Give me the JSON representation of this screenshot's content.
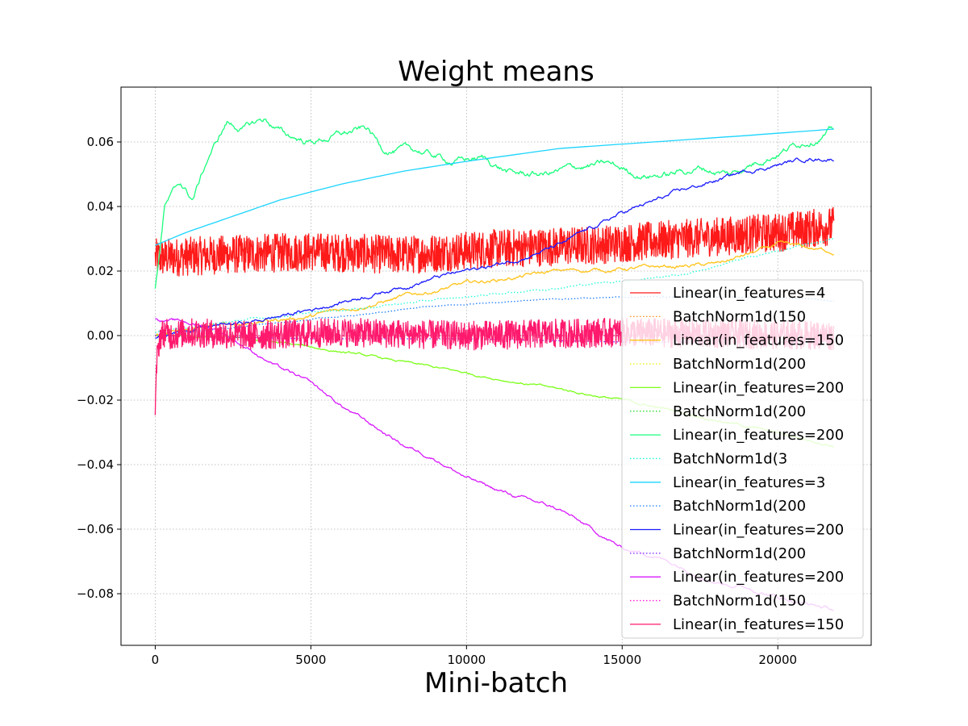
{
  "chart_data": {
    "type": "line",
    "title": "Weight means",
    "xlabel": "Mini-batch",
    "ylabel": "",
    "xlim": [
      -1100,
      23000
    ],
    "ylim": [
      -0.096,
      0.077
    ],
    "x_ticks": [
      0,
      5000,
      10000,
      15000,
      20000
    ],
    "x_tick_labels": [
      "0",
      "5000",
      "10000",
      "15000",
      "20000"
    ],
    "y_ticks": [
      -0.08,
      -0.06,
      -0.04,
      -0.02,
      0.0,
      0.02,
      0.04,
      0.06
    ],
    "y_tick_labels": [
      "−0.08",
      "−0.06",
      "−0.04",
      "−0.02",
      "0.00",
      "0.02",
      "0.04",
      "0.06"
    ],
    "grid": true,
    "legend_position": "right",
    "series": [
      {
        "name": "Linear(in_features=4",
        "color": "#ff1a1a",
        "style": "solid",
        "noise": 0.006,
        "x": [
          0,
          2000,
          5000,
          8000,
          11000,
          14000,
          17000,
          20000,
          21800
        ],
        "y": [
          0.024,
          0.025,
          0.026,
          0.025,
          0.027,
          0.028,
          0.03,
          0.032,
          0.034
        ]
      },
      {
        "name": "BatchNorm1d(150",
        "color": "#ff8c1a",
        "style": "dotted",
        "noise": 0,
        "x": [
          0,
          5000,
          10000,
          15000,
          21800
        ],
        "y": [
          0.0,
          0.0,
          0.0,
          0.0,
          0.0
        ]
      },
      {
        "name": "Linear(in_features=150",
        "color": "#ffc41a",
        "style": "solid",
        "noise": 0.0007,
        "x": [
          0,
          2000,
          5000,
          7000,
          10000,
          13000,
          16000,
          18000,
          20000,
          21800
        ],
        "y": [
          0.0,
          0.003,
          0.006,
          0.01,
          0.016,
          0.02,
          0.021,
          0.022,
          0.028,
          0.026
        ]
      },
      {
        "name": "BatchNorm1d(200",
        "color": "#f0f01a",
        "style": "dotted",
        "noise": 0,
        "x": [
          0,
          5000,
          10000,
          15000,
          21800
        ],
        "y": [
          0.0,
          0.0,
          0.0,
          0.0,
          0.0
        ]
      },
      {
        "name": "Linear(in_features=200",
        "color": "#7cff1a",
        "style": "solid",
        "noise": 0.0004,
        "x": [
          0,
          3000,
          6000,
          9000,
          12000,
          15000,
          18000,
          21800
        ],
        "y": [
          0.0,
          -0.001,
          -0.005,
          -0.01,
          -0.015,
          -0.02,
          -0.026,
          -0.034
        ]
      },
      {
        "name": "BatchNorm1d(200",
        "color": "#1ad81a",
        "style": "dotted",
        "noise": 0,
        "x": [
          0,
          5000,
          10000,
          15000,
          21800
        ],
        "y": [
          0.0,
          0.0,
          0.0,
          0.0,
          0.0
        ]
      },
      {
        "name": "Linear(in_features=200",
        "color": "#1aff7c",
        "style": "solid",
        "noise": 0.0012,
        "x": [
          0,
          300,
          800,
          1200,
          1700,
          2300,
          2800,
          3500,
          4200,
          5000,
          5800,
          6800,
          7300,
          8500,
          9500,
          10500,
          11500,
          12500,
          13500,
          14500,
          15500,
          16500,
          17500,
          18500,
          19500,
          20500,
          21800
        ],
        "y": [
          0.014,
          0.04,
          0.047,
          0.042,
          0.055,
          0.066,
          0.064,
          0.067,
          0.062,
          0.06,
          0.062,
          0.064,
          0.058,
          0.057,
          0.054,
          0.055,
          0.05,
          0.05,
          0.052,
          0.053,
          0.05,
          0.05,
          0.052,
          0.05,
          0.055,
          0.059,
          0.064
        ]
      },
      {
        "name": "BatchNorm1d(3",
        "color": "#1affd8",
        "style": "dotted",
        "noise": 0.0003,
        "x": [
          0,
          3000,
          6000,
          10000,
          14000,
          17000,
          19000,
          21800
        ],
        "y": [
          0.001,
          0.005,
          0.008,
          0.012,
          0.016,
          0.019,
          0.024,
          0.03
        ]
      },
      {
        "name": "Linear(in_features=3",
        "color": "#1ad4ff",
        "style": "solid",
        "noise": 0,
        "x": [
          0,
          1000,
          2500,
          4000,
          6000,
          8000,
          10000,
          13000,
          16000,
          19000,
          21800
        ],
        "y": [
          0.028,
          0.032,
          0.037,
          0.042,
          0.047,
          0.051,
          0.054,
          0.058,
          0.06,
          0.062,
          0.064
        ]
      },
      {
        "name": "BatchNorm1d(200",
        "color": "#1a7cff",
        "style": "dotted",
        "noise": 0.0002,
        "x": [
          0,
          3000,
          6000,
          9000,
          12000,
          15000,
          18000,
          21800
        ],
        "y": [
          0.0,
          0.003,
          0.006,
          0.009,
          0.011,
          0.012,
          0.012,
          0.011
        ]
      },
      {
        "name": "Linear(in_features=200",
        "color": "#1a1aff",
        "style": "solid",
        "noise": 0.0007,
        "x": [
          0,
          1000,
          3000,
          5000,
          7000,
          9000,
          11000,
          13000,
          15000,
          17000,
          19000,
          21000,
          21800
        ],
        "y": [
          -0.001,
          0.002,
          0.004,
          0.008,
          0.013,
          0.018,
          0.022,
          0.028,
          0.038,
          0.045,
          0.051,
          0.055,
          0.055
        ]
      },
      {
        "name": "BatchNorm1d(200",
        "color": "#7c1aff",
        "style": "dotted",
        "noise": 0,
        "x": [
          0,
          5000,
          10000,
          15000,
          21800
        ],
        "y": [
          0.0,
          -0.001,
          -0.001,
          -0.002,
          -0.002
        ]
      },
      {
        "name": "Linear(in_features=200",
        "color": "#d81aff",
        "style": "solid",
        "noise": 0.0006,
        "x": [
          0,
          1000,
          2000,
          3000,
          4000,
          5000,
          6000,
          7000,
          8000,
          9000,
          10000,
          11000,
          12000,
          13000,
          14000,
          15000,
          16000,
          17000,
          18000,
          19000,
          20000,
          21800
        ],
        "y": [
          0.005,
          0.004,
          0.002,
          -0.004,
          -0.01,
          -0.015,
          -0.022,
          -0.028,
          -0.034,
          -0.038,
          -0.044,
          -0.048,
          -0.051,
          -0.054,
          -0.06,
          -0.066,
          -0.068,
          -0.072,
          -0.076,
          -0.078,
          -0.081,
          -0.085
        ]
      },
      {
        "name": "BatchNorm1d(150",
        "color": "#ff1ad8",
        "style": "dotted",
        "noise": 0,
        "x": [
          0,
          5000,
          10000,
          15000,
          21800
        ],
        "y": [
          0.0,
          0.0,
          0.0,
          0.0,
          0.0
        ]
      },
      {
        "name": "Linear(in_features=150",
        "color": "#ff1a6e",
        "style": "solid",
        "noise": 0.0045,
        "x": [
          0,
          50,
          150,
          300,
          500,
          1000,
          3000,
          6000,
          10000,
          15000,
          21800
        ],
        "y": [
          -0.026,
          -0.008,
          0.0,
          0.001,
          0.0,
          0.001,
          0.0,
          0.001,
          0.0,
          0.001,
          0.0
        ]
      }
    ]
  }
}
